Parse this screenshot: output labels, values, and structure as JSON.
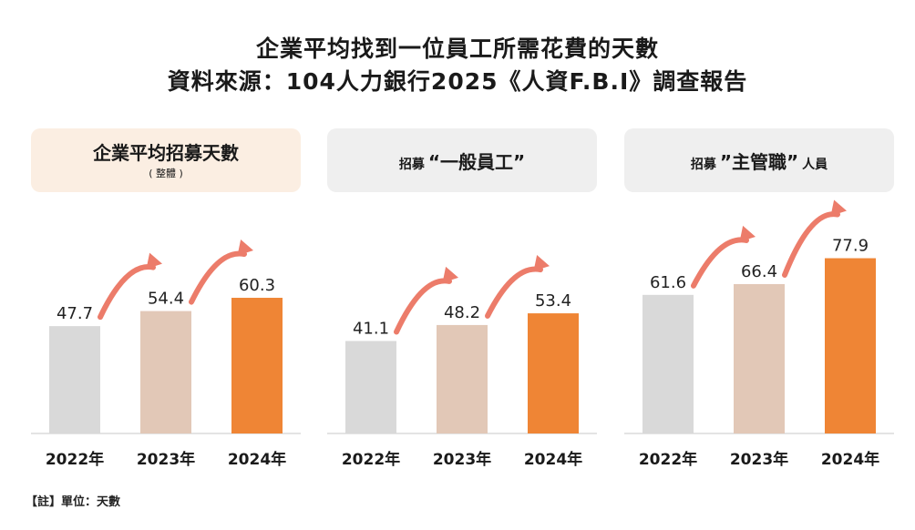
{
  "title": {
    "line1": "企業平均找到一位員工所需花費的天數",
    "line2": "資料來源：104人力銀行2025《人資F.B.I》調查報告"
  },
  "footnote": "【註】單位：天數",
  "colors": {
    "bar_2022": "#d9d9d9",
    "bar_2023": "#e2c8b7",
    "bar_2024": "#ef8535",
    "arrow": "#ec7c6a",
    "baseline": "#c8c8c8",
    "header_first_bg": "#fbeee2",
    "header_bg": "#efefef"
  },
  "panels": [
    {
      "header": {
        "main": "企業平均招募天數",
        "sub": "( 整體 )"
      }
    },
    {
      "header": {
        "prefix": "招募",
        "main": "“一般員工”",
        "suffix": ""
      }
    },
    {
      "header": {
        "prefix": "招募",
        "main": "”主管職”",
        "suffix": "人員"
      }
    }
  ],
  "chart_data": [
    {
      "type": "bar",
      "title": "企業平均招募天數 ( 整體 )",
      "categories": [
        "2022年",
        "2023年",
        "2024年"
      ],
      "values": [
        47.7,
        54.4,
        60.3
      ],
      "value_labels": [
        "47.7",
        "54.4",
        "60.3"
      ],
      "ylim": [
        0,
        85
      ]
    },
    {
      "type": "bar",
      "title": "招募“一般員工”",
      "categories": [
        "2022年",
        "2023年",
        "2024年"
      ],
      "values": [
        41.1,
        48.2,
        53.4
      ],
      "value_labels": [
        "41.1",
        "48.2",
        "53.4"
      ],
      "ylim": [
        0,
        85
      ]
    },
    {
      "type": "bar",
      "title": "招募”主管職”人員",
      "categories": [
        "2022年",
        "2023年",
        "2024年"
      ],
      "values": [
        61.6,
        66.4,
        77.9
      ],
      "value_labels": [
        "61.6",
        "66.4",
        "77.9"
      ],
      "ylim": [
        0,
        85
      ]
    }
  ]
}
